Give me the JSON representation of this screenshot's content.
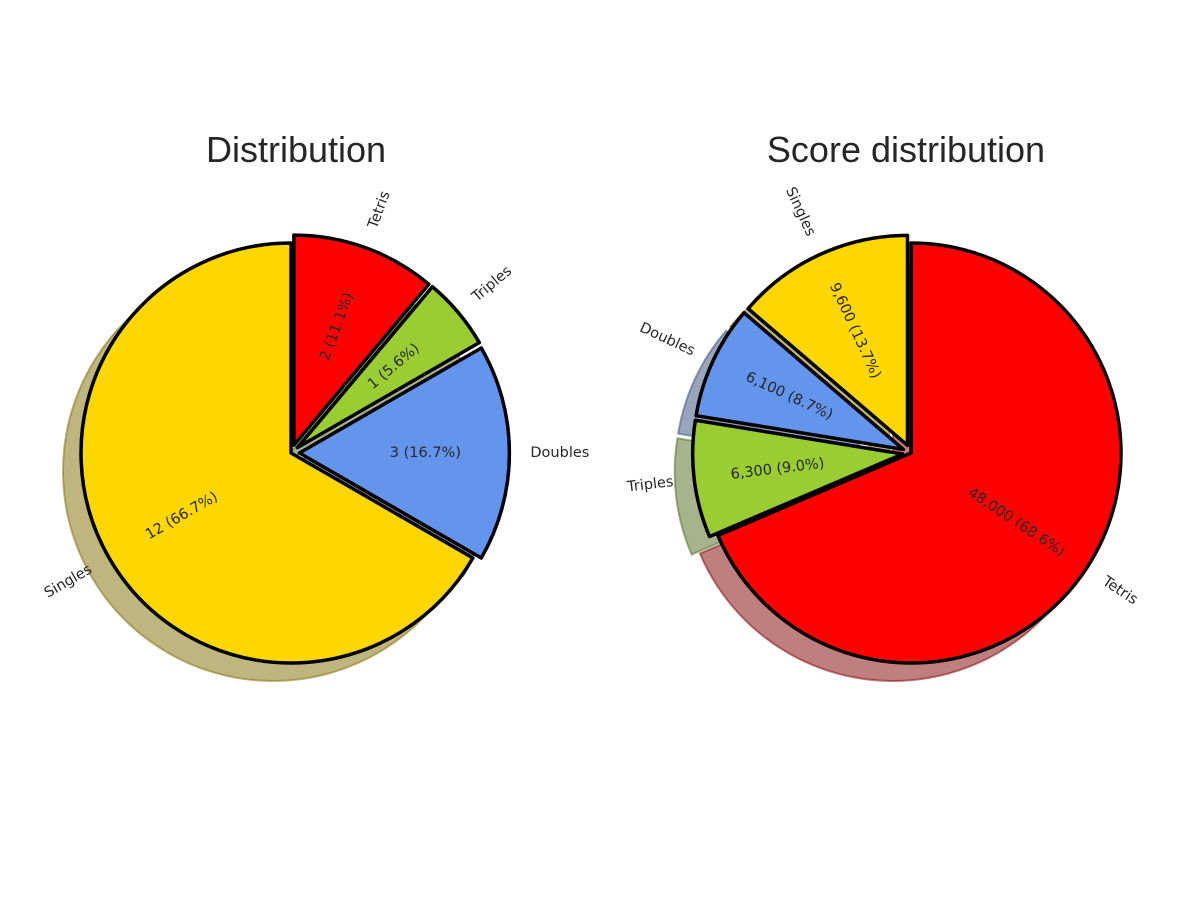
{
  "chart_data": [
    {
      "type": "pie",
      "title": "Distribution",
      "slices": [
        {
          "label": "Tetris",
          "value": 2,
          "percent": 11.1,
          "display": "2 (11.1%)",
          "color": "#FF0000",
          "exploded": true
        },
        {
          "label": "Triples",
          "value": 1,
          "percent": 5.6,
          "display": "1 (5.6%)",
          "color": "#9ACD32",
          "exploded": true
        },
        {
          "label": "Doubles",
          "value": 3,
          "percent": 16.7,
          "display": "3 (16.7%)",
          "color": "#6495ED",
          "exploded": true
        },
        {
          "label": "Singles",
          "value": 12,
          "percent": 66.7,
          "display": "12 (66.7%)",
          "color": "#FFD700",
          "exploded": false
        }
      ],
      "start_angle_deg": 90,
      "direction": "clockwise",
      "shadow": true
    },
    {
      "type": "pie",
      "title": "Score distribution",
      "slices": [
        {
          "label": "Tetris",
          "value": 48000,
          "percent": 68.6,
          "display": "48,000 (68.6%)",
          "color": "#FF0000",
          "exploded": false
        },
        {
          "label": "Triples",
          "value": 6300,
          "percent": 9.0,
          "display": "6,300 (9.0%)",
          "color": "#9ACD32",
          "exploded": true
        },
        {
          "label": "Doubles",
          "value": 6100,
          "percent": 8.7,
          "display": "6,100 (8.7%)",
          "color": "#6495ED",
          "exploded": true
        },
        {
          "label": "Singles",
          "value": 9600,
          "percent": 13.7,
          "display": "9,600 (13.7%)",
          "color": "#FFD700",
          "exploded": true
        }
      ],
      "start_angle_deg": 90,
      "direction": "clockwise",
      "shadow": true
    }
  ]
}
